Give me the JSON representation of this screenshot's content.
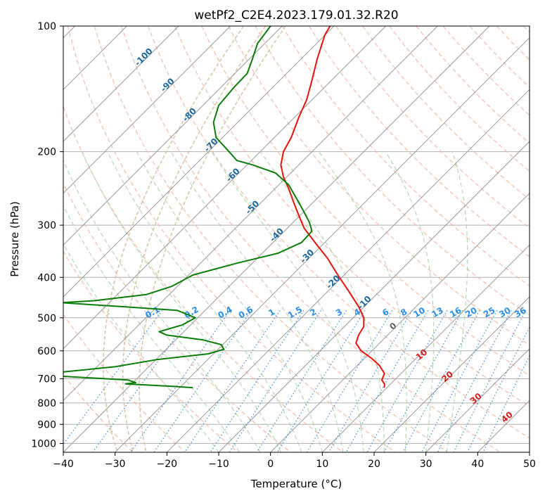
{
  "chart_data": {
    "type": "line",
    "title": "wetPf2_C2E4.2023.179.01.32.R20",
    "xlabel": "Temperature (°C)",
    "ylabel": "Pressure (hPa)",
    "xlim": [
      -40,
      50
    ],
    "ylim": [
      1050,
      100
    ],
    "y_scale": "log",
    "skew": "temperature lines slanted 45°",
    "grid": true,
    "x_ticks": [
      "−40",
      "−30",
      "−20",
      "−10",
      "0",
      "10",
      "20",
      "30",
      "40",
      "50"
    ],
    "y_ticks": [
      "100",
      "200",
      "300",
      "400",
      "500",
      "600",
      "700",
      "800",
      "900",
      "1000"
    ],
    "colors": {
      "temperature": "#e8120c",
      "dewpoint": "#0a7d0a",
      "isotherm": "#9a9a9a",
      "dry_adiabat": "#f4b09a",
      "moist_adiabat": "#a6d4a6",
      "mixing_ratio": "#3a8ee8",
      "mixing_label": "#2b8fe8",
      "isotherm_label": "#1e6aa0",
      "adiabat_label": "#d02020",
      "zero_label": "#606060",
      "dashed_tan": "#d9c8a8"
    },
    "series": [
      {
        "name": "temperature",
        "points": [
          [
            11.5,
            100
          ],
          [
            10.5,
            105
          ],
          [
            9.0,
            120
          ],
          [
            8.0,
            135
          ],
          [
            7.0,
            150
          ],
          [
            5.5,
            165
          ],
          [
            4.0,
            185
          ],
          [
            2.5,
            200
          ],
          [
            2.0,
            215
          ],
          [
            2.5,
            230
          ],
          [
            3.5,
            245
          ],
          [
            4.5,
            265
          ],
          [
            5.5,
            285
          ],
          [
            6.5,
            305
          ],
          [
            9.0,
            335
          ],
          [
            11.0,
            360
          ],
          [
            13.0,
            395
          ],
          [
            15.0,
            430
          ],
          [
            17.0,
            470
          ],
          [
            18.0,
            500
          ],
          [
            18.0,
            525
          ],
          [
            17.0,
            550
          ],
          [
            16.5,
            575
          ],
          [
            17.5,
            600
          ],
          [
            19.5,
            625
          ],
          [
            21.0,
            650
          ],
          [
            22.0,
            680
          ],
          [
            21.5,
            705
          ],
          [
            22.0,
            720
          ],
          [
            22.0,
            735
          ]
        ]
      },
      {
        "name": "dewpoint",
        "points": [
          [
            0,
            100
          ],
          [
            -2.5,
            110
          ],
          [
            -3.5,
            120
          ],
          [
            -4.5,
            130
          ],
          [
            -7.0,
            140
          ],
          [
            -10.0,
            155
          ],
          [
            -11.0,
            170
          ],
          [
            -10.5,
            185
          ],
          [
            -8.0,
            200
          ],
          [
            -6.5,
            210
          ],
          [
            -3.5,
            215
          ],
          [
            1.0,
            225
          ],
          [
            3.5,
            240
          ],
          [
            5.5,
            265
          ],
          [
            7.5,
            295
          ],
          [
            8.0,
            310
          ],
          [
            6.0,
            330
          ],
          [
            1.5,
            350
          ],
          [
            -6.5,
            370
          ],
          [
            -15.0,
            395
          ],
          [
            -19.0,
            420
          ],
          [
            -24.0,
            440
          ],
          [
            -34.0,
            455
          ],
          [
            -40.5,
            460
          ],
          [
            -29.0,
            470
          ],
          [
            -18.0,
            480
          ],
          [
            -14.5,
            500
          ],
          [
            -17.0,
            520
          ],
          [
            -21.5,
            540
          ],
          [
            -20.0,
            550
          ],
          [
            -13.0,
            565
          ],
          [
            -9.5,
            580
          ],
          [
            -9.0,
            595
          ],
          [
            -12.0,
            610
          ],
          [
            -22.0,
            630
          ],
          [
            -30.0,
            655
          ],
          [
            -40.5,
            675
          ],
          [
            -40.0,
            680
          ],
          [
            -40.5,
            690
          ],
          [
            -27.5,
            705
          ],
          [
            -26.0,
            715
          ],
          [
            -28.0,
            720
          ],
          [
            -19.0,
            730
          ],
          [
            -15.0,
            735
          ]
        ]
      }
    ],
    "isotherm_labels": [
      "-100",
      "-90",
      "-80",
      "-70",
      "-60",
      "-50",
      "-40",
      "-30",
      "-20",
      "-10"
    ],
    "isotherm_label_values": [
      -100,
      -90,
      -80,
      -70,
      -60,
      -50,
      -40,
      -30,
      -20,
      -10
    ],
    "mixing_ratio_labels": [
      "0.1",
      "0.2",
      "0.4",
      "0.6",
      "1",
      "1.5",
      "2",
      "3",
      "4",
      "6",
      "8",
      "10",
      "13",
      "16",
      "20",
      "25",
      "30",
      "36"
    ],
    "mixing_ratio_label_temps": [
      -22.5,
      -15.0,
      -8.5,
      -4.5,
      0.5,
      5.0,
      8.5,
      13.5,
      17.0,
      22.5,
      26.0,
      29.0,
      32.5,
      36.0,
      39.0,
      42.5,
      45.5,
      48.5
    ],
    "dry_adiabat_labels": [
      "0",
      "10",
      "20",
      "30",
      "40"
    ],
    "dry_adiabat_label_points": [
      [
        24.0,
        530
      ],
      [
        29.5,
        620
      ],
      [
        34.5,
        700
      ],
      [
        40.0,
        790
      ],
      [
        46.0,
        875
      ]
    ]
  }
}
